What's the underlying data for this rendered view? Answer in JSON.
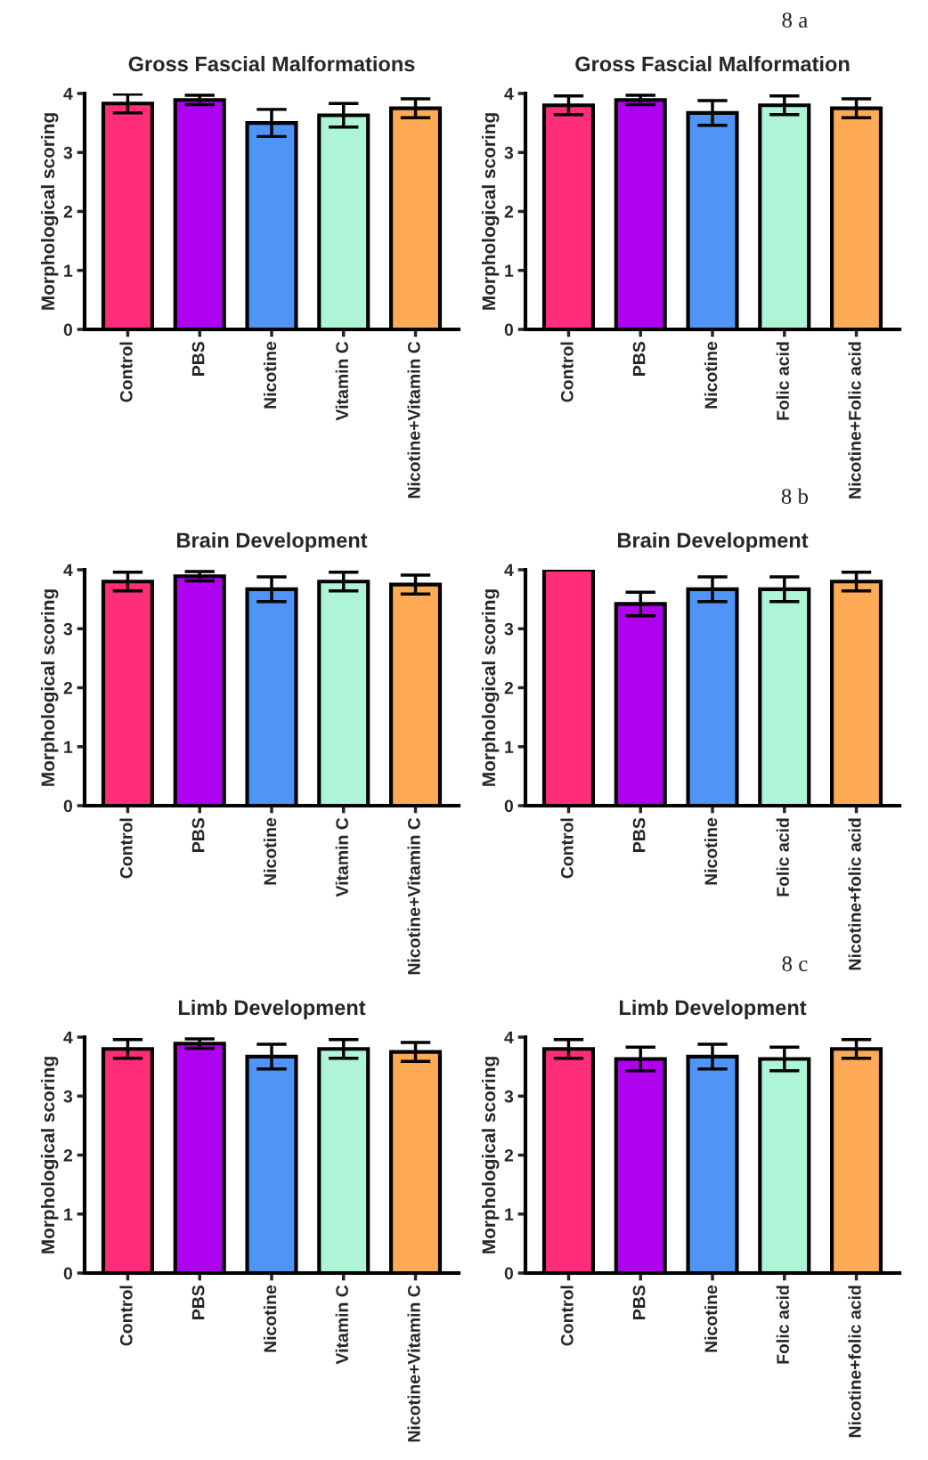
{
  "chart_data": [
    {
      "type": "bar",
      "title": "Gross Fascial Malformations",
      "ylabel": "Morphological scoring",
      "categories": [
        "Control",
        "PBS",
        "Nicotine",
        "Vitamin C",
        "Nicotine+Vitamin C"
      ],
      "values": [
        3.83,
        3.89,
        3.5,
        3.63,
        3.75
      ],
      "errors": [
        0.16,
        0.08,
        0.23,
        0.2,
        0.16
      ],
      "colors": [
        "#ff2d7a",
        "#b000f0",
        "#4f94f7",
        "#aef5d8",
        "#ffaa55"
      ],
      "ylim": [
        0,
        4
      ],
      "yticks": [
        0,
        1,
        2,
        3,
        4
      ]
    },
    {
      "type": "bar",
      "title": "Gross Fascial Malformation",
      "ylabel": "Morphological scoring",
      "annotations": [
        "8 a"
      ],
      "categories": [
        "Control",
        "PBS",
        "Nicotine",
        "Folic acid",
        "Nicotine+Folic acid"
      ],
      "values": [
        3.8,
        3.89,
        3.67,
        3.8,
        3.75
      ],
      "errors": [
        0.16,
        0.08,
        0.21,
        0.16,
        0.16
      ],
      "colors": [
        "#ff2d7a",
        "#b000f0",
        "#4f94f7",
        "#aef5d8",
        "#ffaa55"
      ],
      "ylim": [
        0,
        4
      ],
      "yticks": [
        0,
        1,
        2,
        3,
        4
      ]
    },
    {
      "type": "bar",
      "title": "Brain Development",
      "ylabel": "Morphological scoring",
      "categories": [
        "Control",
        "PBS",
        "Nicotine",
        "Vitamin C",
        "Nicotine+Vitamin C"
      ],
      "values": [
        3.8,
        3.89,
        3.67,
        3.8,
        3.75
      ],
      "errors": [
        0.16,
        0.08,
        0.21,
        0.16,
        0.16
      ],
      "colors": [
        "#ff2d7a",
        "#b000f0",
        "#4f94f7",
        "#aef5d8",
        "#ffaa55"
      ],
      "ylim": [
        0,
        4
      ],
      "yticks": [
        0,
        1,
        2,
        3,
        4
      ]
    },
    {
      "type": "bar",
      "title": "Brain Development",
      "ylabel": "Morphological scoring",
      "annotations": [
        "8 b"
      ],
      "categories": [
        "Control",
        "PBS",
        "Nicotine",
        "Folic acid",
        "Nicotine+folic acid"
      ],
      "values": [
        4.0,
        3.42,
        3.67,
        3.67,
        3.8
      ],
      "errors": [
        0,
        0.2,
        0.21,
        0.21,
        0.16
      ],
      "colors": [
        "#ff2d7a",
        "#b000f0",
        "#4f94f7",
        "#aef5d8",
        "#ffaa55"
      ],
      "ylim": [
        0,
        4
      ],
      "yticks": [
        0,
        1,
        2,
        3,
        4
      ]
    },
    {
      "type": "bar",
      "title": "Limb Development",
      "ylabel": "Morphological scoring",
      "categories": [
        "Control",
        "PBS",
        "Nicotine",
        "Vitamin C",
        "Nicotine+Vitamin C"
      ],
      "values": [
        3.8,
        3.89,
        3.67,
        3.8,
        3.75
      ],
      "errors": [
        0.16,
        0.08,
        0.21,
        0.16,
        0.16
      ],
      "colors": [
        "#ff2d7a",
        "#b000f0",
        "#4f94f7",
        "#aef5d8",
        "#ffaa55"
      ],
      "ylim": [
        0,
        4
      ],
      "yticks": [
        0,
        1,
        2,
        3,
        4
      ]
    },
    {
      "type": "bar",
      "title": "Limb Development",
      "ylabel": "Morphological scoring",
      "annotations": [
        "8 c"
      ],
      "categories": [
        "Control",
        "PBS",
        "Nicotine",
        "Folic acid",
        "Nicotine+folic acid"
      ],
      "values": [
        3.8,
        3.63,
        3.67,
        3.63,
        3.8
      ],
      "errors": [
        0.16,
        0.2,
        0.21,
        0.2,
        0.16
      ],
      "colors": [
        "#ff2d7a",
        "#b000f0",
        "#4f94f7",
        "#aef5d8",
        "#ffaa55"
      ],
      "ylim": [
        0,
        4
      ],
      "yticks": [
        0,
        1,
        2,
        3,
        4
      ]
    }
  ]
}
